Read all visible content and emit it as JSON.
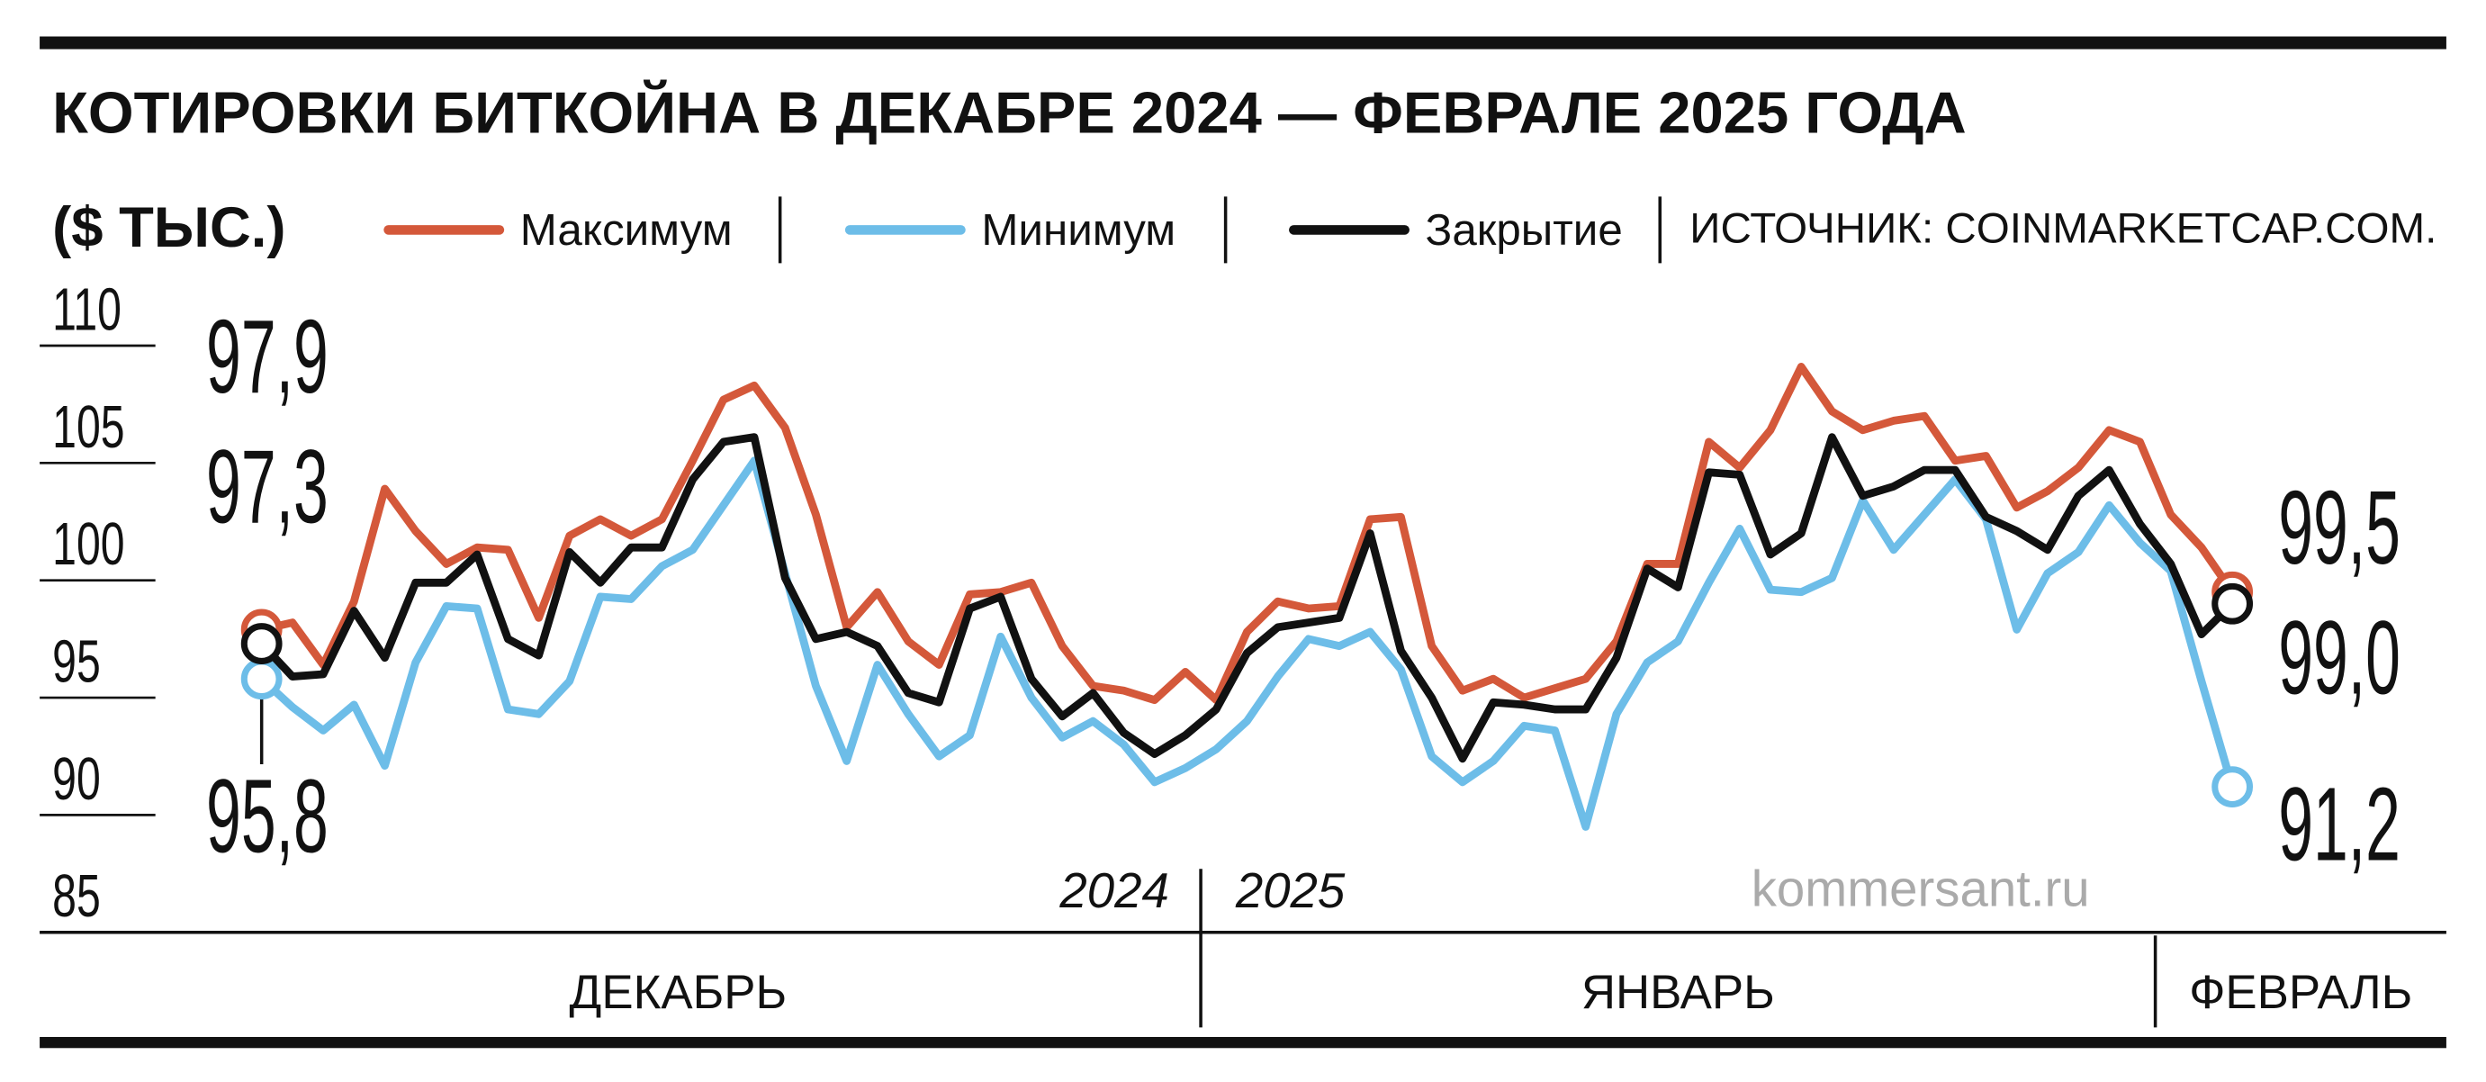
{
  "chart_data": {
    "type": "line",
    "title": "КОТИРОВКИ БИТКОЙНА В ДЕКАБРЕ 2024 — ФЕВРАЛЕ 2025 ГОДА",
    "ylabel": "($ ТЫС.)",
    "source": "ИСТОЧНИК: COINMARKETCAP.COM.",
    "watermark": "kommersant.ru",
    "years": [
      "2024",
      "2025"
    ],
    "categories": [
      "ДЕКАБРЬ",
      "ДЕКАБРЬ",
      "ДЕКАБРЬ",
      "ДЕКАБРЬ",
      "ДЕКАБРЬ",
      "ДЕКАБРЬ",
      "ДЕКАБРЬ",
      "ДЕКАБРЬ",
      "ДЕКАБРЬ",
      "ДЕКАБРЬ",
      "ДЕКАБРЬ",
      "ДЕКАБРЬ",
      "ДЕКАБРЬ",
      "ДЕКАБРЬ",
      "ДЕКАБРЬ",
      "ДЕКАБРЬ",
      "ДЕКАБРЬ",
      "ДЕКАБРЬ",
      "ДЕКАБРЬ",
      "ДЕКАБРЬ",
      "ДЕКАБРЬ",
      "ДЕКАБРЬ",
      "ДЕКАБРЬ",
      "ДЕКАБРЬ",
      "ДЕКАБРЬ",
      "ДЕКАБРЬ",
      "ДЕКАБРЬ",
      "ДЕКАБРЬ",
      "ДЕКАБРЬ",
      "ДЕКАБРЬ",
      "ДЕКАБРЬ",
      "ЯНВАРЬ",
      "ЯНВАРЬ",
      "ЯНВАРЬ",
      "ЯНВАРЬ",
      "ЯНВАРЬ",
      "ЯНВАРЬ",
      "ЯНВАРЬ",
      "ЯНВАРЬ",
      "ЯНВАРЬ",
      "ЯНВАРЬ",
      "ЯНВАРЬ",
      "ЯНВАРЬ",
      "ЯНВАРЬ",
      "ЯНВАРЬ",
      "ЯНВАРЬ",
      "ЯНВАРЬ",
      "ЯНВАРЬ",
      "ЯНВАРЬ",
      "ЯНВАРЬ",
      "ЯНВАРЬ",
      "ЯНВАРЬ",
      "ЯНВАРЬ",
      "ЯНВАРЬ",
      "ЯНВАРЬ",
      "ЯНВАРЬ",
      "ЯНВАРЬ",
      "ЯНВАРЬ",
      "ЯНВАРЬ",
      "ЯНВАРЬ",
      "ЯНВАРЬ",
      "ЯНВАРЬ",
      "ФЕВРАЛЬ",
      "ФЕВРАЛЬ",
      "ФЕВРАЛЬ"
    ],
    "series": [
      {
        "name": "Максимум",
        "color": "#d4583a",
        "values": [
          97.9,
          98.2,
          96.4,
          99.1,
          103.9,
          102.1,
          100.7,
          101.4,
          101.3,
          98.4,
          101.9,
          102.6,
          101.9,
          102.6,
          105.1,
          107.7,
          108.3,
          106.5,
          102.8,
          98.0,
          99.5,
          97.4,
          96.4,
          99.4,
          99.5,
          99.9,
          97.2,
          95.5,
          95.3,
          94.9,
          96.1,
          94.9,
          97.8,
          99.1,
          98.8,
          98.9,
          102.6,
          102.7,
          97.2,
          95.3,
          95.8,
          95.0,
          95.4,
          95.8,
          97.4,
          100.7,
          100.7,
          105.9,
          104.8,
          106.4,
          109.1,
          107.2,
          106.4,
          106.8,
          107.0,
          105.1,
          105.3,
          103.1,
          103.8,
          104.8,
          106.4,
          105.9,
          102.8,
          101.4,
          99.5
        ],
        "value_labels": {
          "0": "97,9",
          "64": "99,5"
        }
      },
      {
        "name": "Минимум",
        "color": "#6dbde8",
        "values": [
          95.8,
          94.6,
          93.6,
          94.7,
          92.1,
          96.5,
          98.9,
          98.8,
          94.5,
          94.3,
          95.7,
          99.3,
          99.2,
          100.6,
          101.3,
          103.2,
          105.1,
          100.3,
          95.5,
          92.3,
          96.4,
          94.3,
          92.5,
          93.4,
          97.6,
          95.0,
          93.3,
          94.0,
          93.0,
          91.4,
          92.0,
          92.8,
          94.0,
          95.9,
          97.5,
          97.2,
          97.8,
          96.2,
          92.5,
          91.4,
          92.3,
          93.8,
          93.6,
          89.5,
          94.3,
          96.5,
          97.4,
          99.9,
          102.2,
          99.6,
          99.5,
          100.1,
          103.4,
          101.3,
          102.8,
          104.3,
          102.6,
          97.9,
          100.3,
          101.2,
          103.2,
          101.6,
          100.4,
          95.7,
          91.2
        ],
        "value_labels": {
          "0": "95,8",
          "64": "91,2"
        }
      },
      {
        "name": "Закрытие",
        "color": "#111111",
        "values": [
          97.3,
          95.9,
          96.0,
          98.7,
          96.7,
          99.9,
          99.9,
          101.1,
          97.5,
          96.8,
          101.2,
          99.9,
          101.4,
          101.4,
          104.3,
          105.9,
          106.1,
          100.1,
          97.5,
          97.8,
          97.2,
          95.2,
          94.8,
          98.8,
          99.3,
          95.8,
          94.2,
          95.2,
          93.5,
          92.6,
          93.4,
          94.5,
          96.9,
          98.0,
          98.2,
          98.4,
          102.0,
          97.0,
          95.0,
          92.4,
          94.8,
          94.7,
          94.5,
          94.5,
          96.7,
          100.5,
          99.7,
          104.6,
          104.5,
          101.1,
          102.0,
          106.1,
          103.6,
          104.0,
          104.7,
          104.7,
          102.7,
          102.1,
          101.3,
          103.6,
          104.7,
          102.4,
          100.7,
          97.7,
          99.0
        ],
        "value_labels": {
          "0": "97,3",
          "64": "99,0"
        }
      }
    ],
    "ylim": [
      85,
      110
    ],
    "yticks": [
      85,
      90,
      95,
      100,
      105,
      110
    ]
  }
}
